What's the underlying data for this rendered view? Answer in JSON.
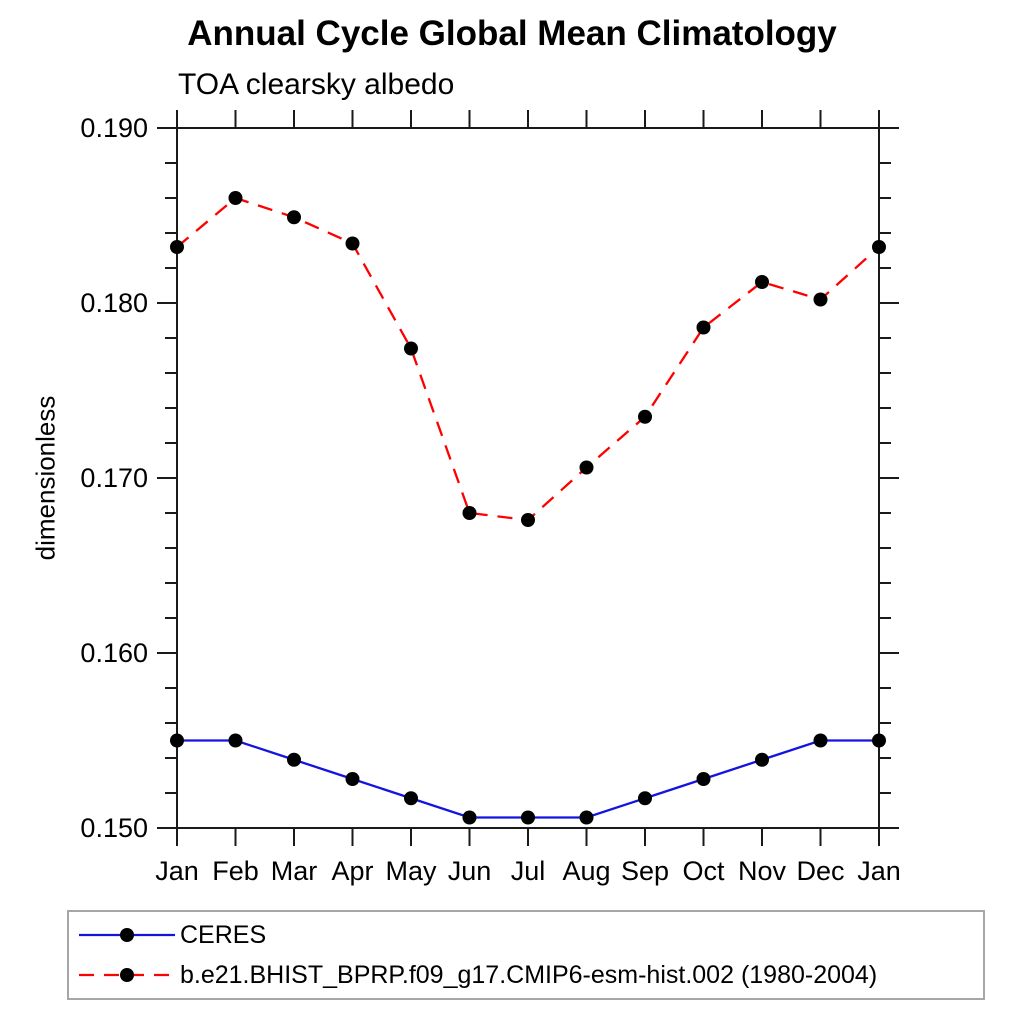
{
  "chart_data": {
    "type": "line",
    "title": "Annual Cycle Global Mean Climatology",
    "subtitle": "TOA clearsky albedo",
    "xlabel": "",
    "ylabel": "dimensionless",
    "x_categories": [
      "Jan",
      "Feb",
      "Mar",
      "Apr",
      "May",
      "Jun",
      "Jul",
      "Aug",
      "Sep",
      "Oct",
      "Nov",
      "Dec",
      "Jan"
    ],
    "ylim": [
      0.15,
      0.19
    ],
    "y_major_ticks": [
      0.15,
      0.16,
      0.17,
      0.18,
      0.19
    ],
    "y_tick_labels": [
      "0.150",
      "0.160",
      "0.170",
      "0.180",
      "0.190"
    ],
    "y_minor_step": 0.002,
    "grid": false,
    "legend_position": "bottom-left-box",
    "marker": "filled-circle",
    "marker_color": "#000000",
    "axis_color": "#1a1a1a",
    "series": [
      {
        "name": "CERES",
        "color": "#1414e0",
        "line_style": "solid",
        "values": [
          0.155,
          0.155,
          0.1539,
          0.1528,
          0.1517,
          0.1506,
          0.1506,
          0.1506,
          0.1517,
          0.1528,
          0.1539,
          0.155,
          0.155
        ]
      },
      {
        "name": "b.e21.BHIST_BPRP.f09_g17.CMIP6-esm-hist.002 (1980-2004)",
        "color": "#ff0000",
        "line_style": "dashed",
        "values": [
          0.1832,
          0.186,
          0.1849,
          0.1834,
          0.1774,
          0.168,
          0.1676,
          0.1706,
          0.1735,
          0.1786,
          0.1812,
          0.1802,
          0.1832
        ]
      }
    ]
  }
}
